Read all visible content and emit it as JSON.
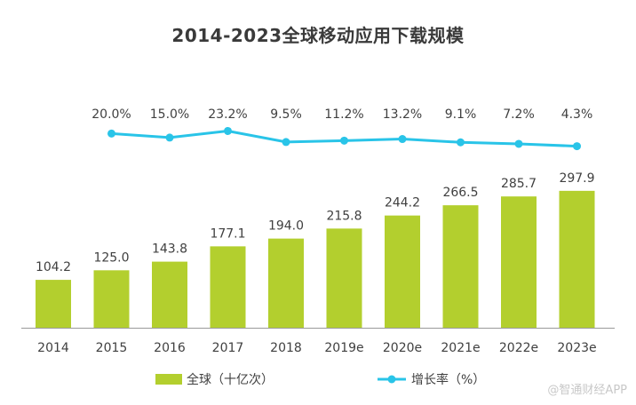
{
  "chart_data": {
    "type": "bar",
    "title": "2014-2023全球移动应用下载规模",
    "categories": [
      "2014",
      "2015",
      "2016",
      "2017",
      "2018",
      "2019e",
      "2020e",
      "2021e",
      "2022e",
      "2023e"
    ],
    "series": [
      {
        "name": "全球（十亿次）",
        "type": "bar",
        "values": [
          104.2,
          125.0,
          143.8,
          177.1,
          194.0,
          215.8,
          244.2,
          266.5,
          285.7,
          297.9
        ],
        "labels": [
          "104.2",
          "125.0",
          "143.8",
          "177.1",
          "194.0",
          "215.8",
          "244.2",
          "266.5",
          "285.7",
          "297.9"
        ]
      },
      {
        "name": "增长率（%）",
        "type": "line",
        "x": [
          "2015",
          "2016",
          "2017",
          "2018",
          "2019e",
          "2020e",
          "2021e",
          "2022e",
          "2023e"
        ],
        "values": [
          20.0,
          15.0,
          23.2,
          9.5,
          11.2,
          13.2,
          9.1,
          7.2,
          4.3
        ],
        "labels": [
          "20.0%",
          "15.0%",
          "23.2%",
          "9.5%",
          "11.2%",
          "13.2%",
          "9.1%",
          "7.2%",
          "4.3%"
        ]
      }
    ],
    "legend_position": "bottom",
    "grid": false
  },
  "watermark": "@智通财经APP",
  "colors": {
    "bar": "#b3cf2e",
    "line": "#29c4e8",
    "title": "#3a3a3a",
    "text": "#404040",
    "axis": "#999999"
  }
}
